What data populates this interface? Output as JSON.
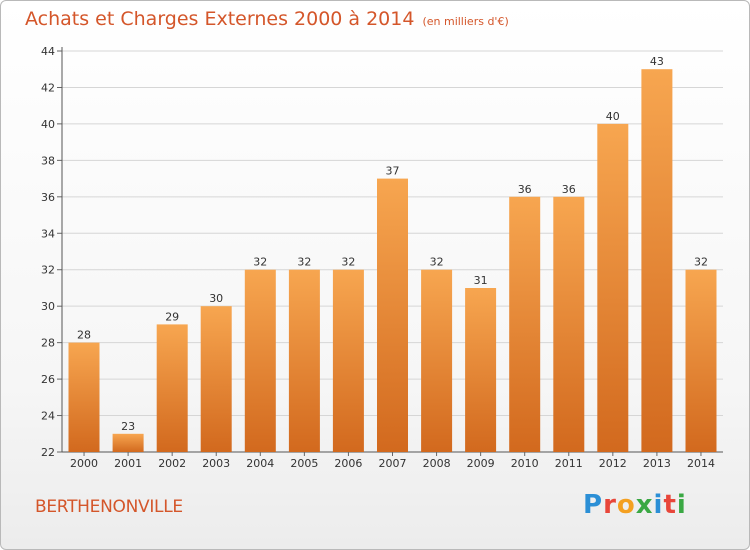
{
  "chart_data": {
    "type": "bar",
    "title": "Achats et Charges Externes 2000 à 2014",
    "unit_note": "(en milliers d'€)",
    "xlabel": "",
    "ylabel": "",
    "categories": [
      "2000",
      "2001",
      "2002",
      "2003",
      "2004",
      "2005",
      "2006",
      "2007",
      "2008",
      "2009",
      "2010",
      "2011",
      "2012",
      "2013",
      "2014"
    ],
    "values": [
      28,
      23,
      29,
      30,
      32,
      32,
      32,
      37,
      32,
      31,
      36,
      36,
      40,
      43,
      32
    ],
    "value_labels": [
      "28",
      "23",
      "29",
      "30",
      "32",
      "32",
      "32",
      "37",
      "32",
      "31",
      "36",
      "36",
      "40",
      "43",
      "32"
    ],
    "ylim": [
      22,
      44
    ],
    "yticks": [
      22,
      24,
      26,
      28,
      30,
      32,
      34,
      36,
      38,
      40,
      42,
      44
    ],
    "grid": true,
    "legend": "none",
    "colors": {
      "bar_light": "#f7a650",
      "bar_dark": "#d2691e",
      "title": "#d4562a"
    }
  },
  "footer": {
    "commune": "BERTHENONVILLE",
    "logo_text": "Proxiti",
    "logo_colors": [
      "#2b8fd6",
      "#e8463a",
      "#f4a020",
      "#3aa843",
      "#2b8fd6",
      "#e8463a",
      "#3aa843"
    ]
  }
}
